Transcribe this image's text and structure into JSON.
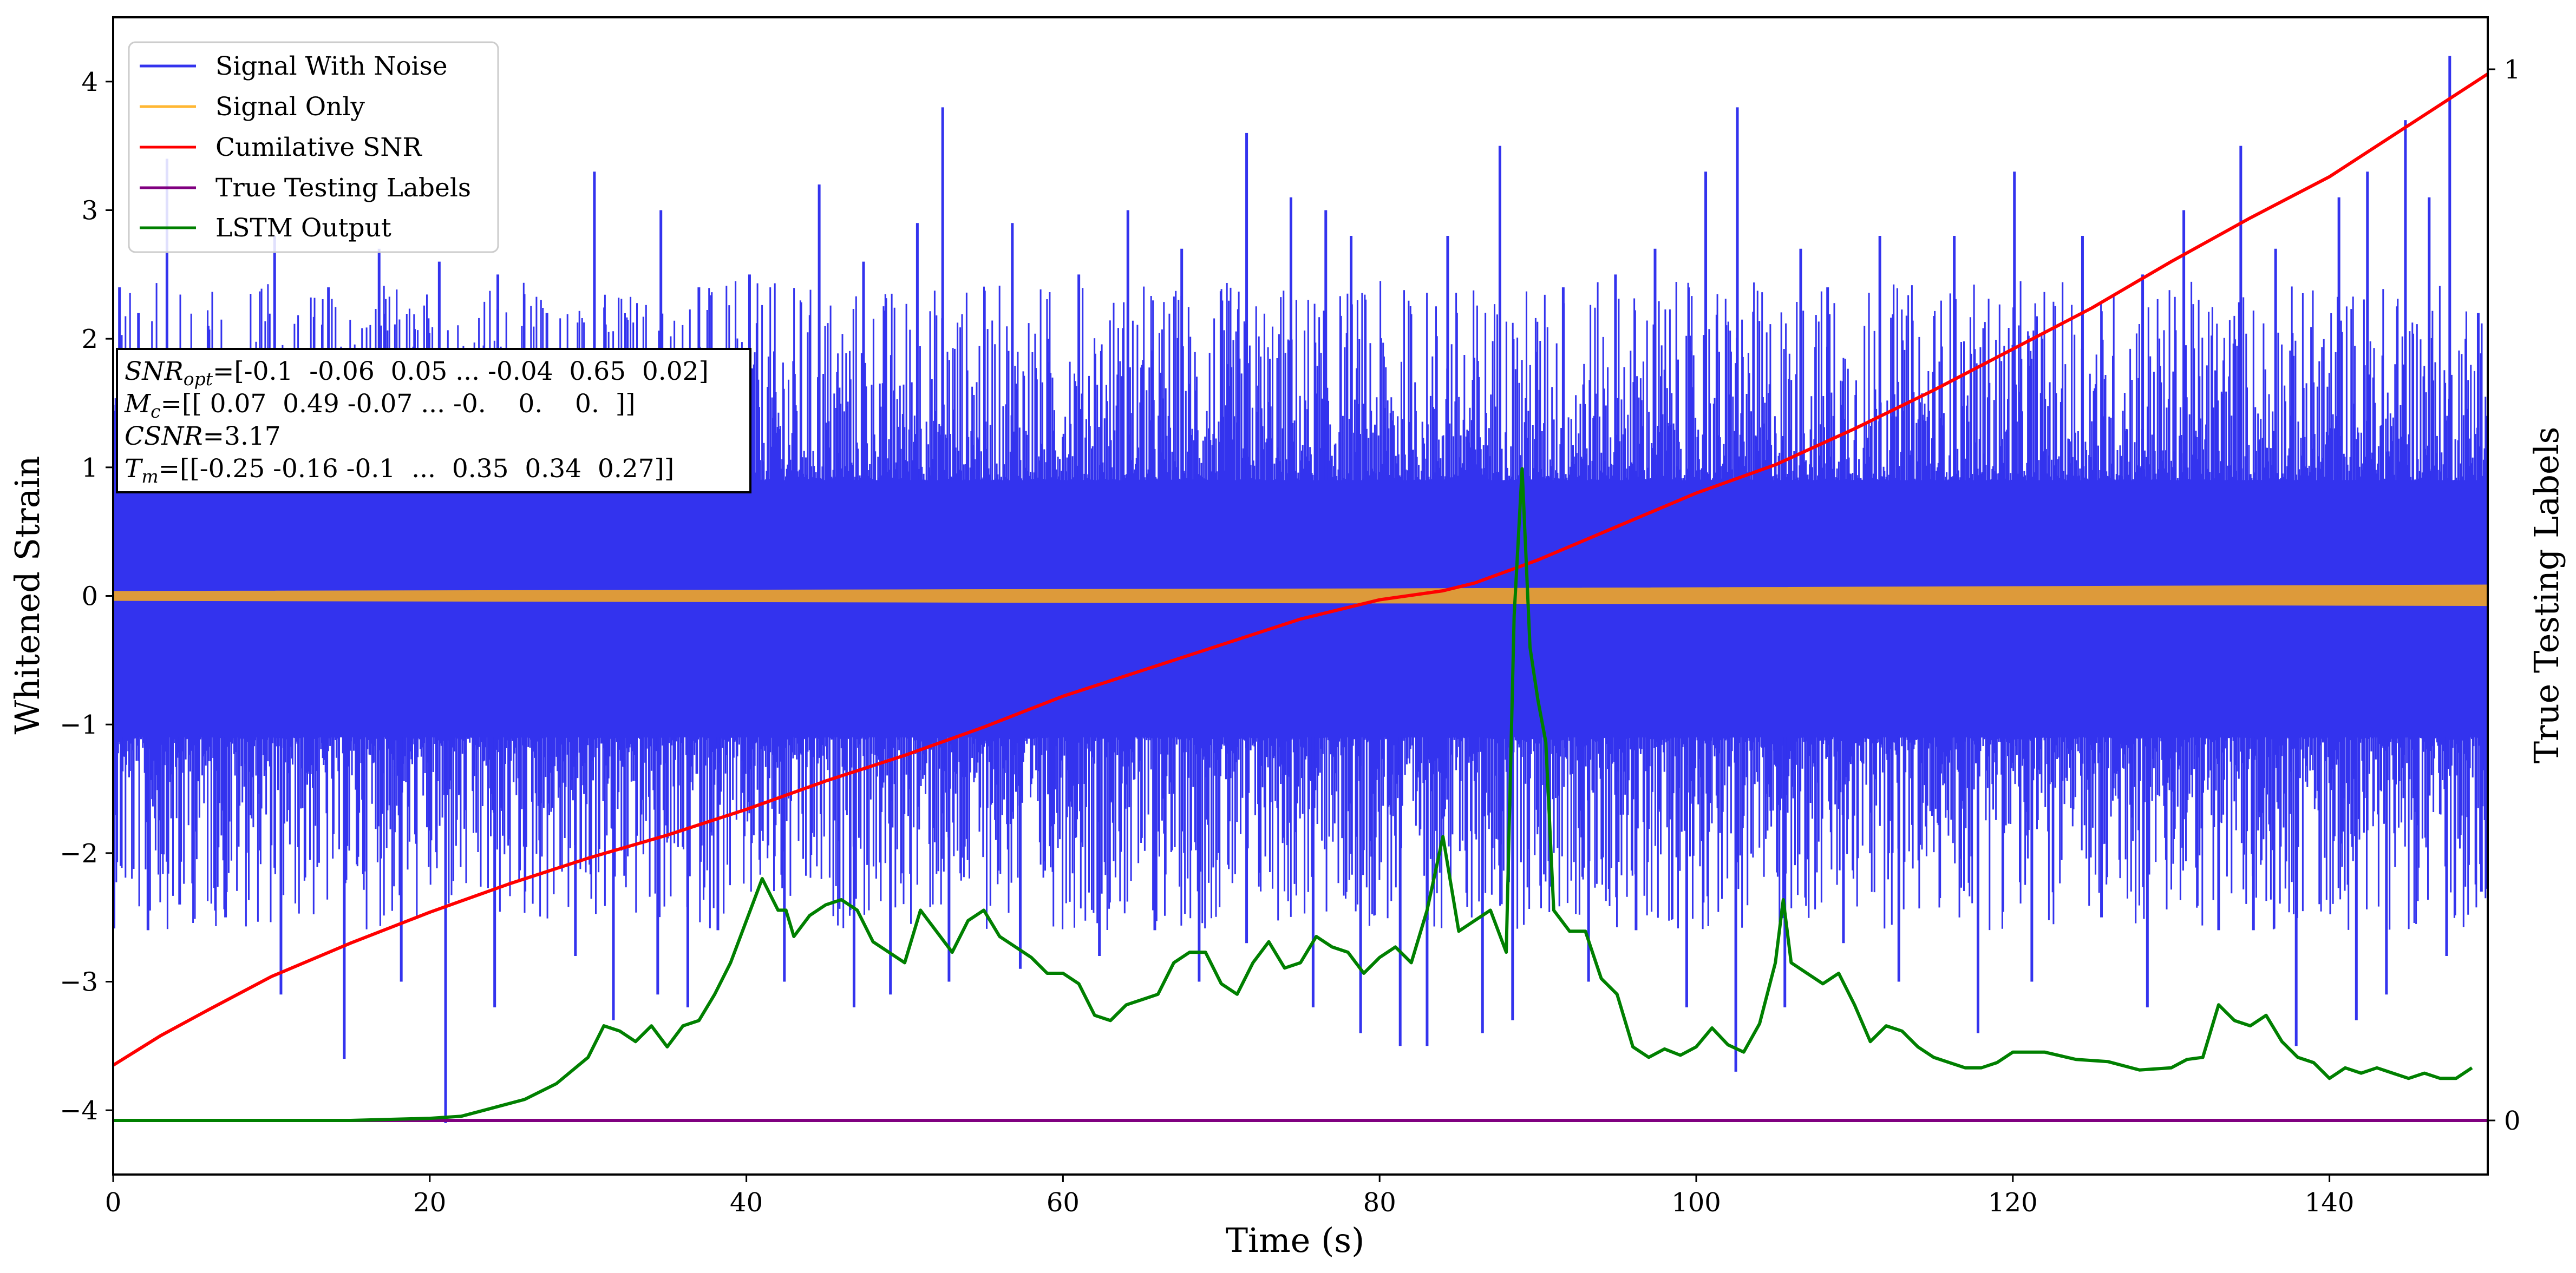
{
  "chart_data": {
    "type": "line",
    "xlabel": "Time (s)",
    "ylabel": "Whitened Strain",
    "y2label": "True Testing Labels",
    "xlim": [
      0,
      150
    ],
    "ylim": [
      -4.5,
      4.5
    ],
    "y2lim": [
      0,
      1
    ],
    "xticks": [
      0,
      20,
      40,
      60,
      80,
      100,
      120,
      140
    ],
    "yticks": [
      -4,
      -3,
      -2,
      -1,
      0,
      1,
      2,
      3,
      4
    ],
    "y2ticks": [
      0,
      1
    ],
    "grid": false,
    "legend_position": "top-left",
    "annotation": {
      "snr_sym": "SNR",
      "snr_sub": "opt",
      "snr_val": "=[-0.1  -0.06  0.05 ... -0.04  0.65  0.02]",
      "mc_sym": "M",
      "mc_sub": "c",
      "mc_val": "=[[ 0.07  0.49 -0.07 ... -0.    0.    0.  ]]",
      "csnr_sym": "CSNR",
      "csnr_val": "=3.17",
      "tm_sym": "T",
      "tm_sub": "m",
      "tm_val": "=[[-0.25 -0.16 -0.1  ...  0.35  0.34  0.27]]"
    },
    "series": [
      {
        "name": "Signal With Noise",
        "color": "#3333ee",
        "axis": "left",
        "style": "dense-noise",
        "band_upper": 0.9,
        "band_lower": -1.1,
        "peaks_upper": [
          [
            0.4,
            2.4
          ],
          [
            1.6,
            2.2
          ],
          [
            3.4,
            3.4
          ],
          [
            6.0,
            2.1
          ],
          [
            10.2,
            2.8
          ],
          [
            13.6,
            2.4
          ],
          [
            16.8,
            2.7
          ],
          [
            20.6,
            2.6
          ],
          [
            24.3,
            2.5
          ],
          [
            27.4,
            2.2
          ],
          [
            30.4,
            3.3
          ],
          [
            34.6,
            3.0
          ],
          [
            37.0,
            2.4
          ],
          [
            40.2,
            2.5
          ],
          [
            44.6,
            3.2
          ],
          [
            47.4,
            2.6
          ],
          [
            50.8,
            2.9
          ],
          [
            52.4,
            3.8
          ],
          [
            56.8,
            2.9
          ],
          [
            61.0,
            2.5
          ],
          [
            64.1,
            3.0
          ],
          [
            67.5,
            2.7
          ],
          [
            71.6,
            3.6
          ],
          [
            74.4,
            3.1
          ],
          [
            76.6,
            3.0
          ],
          [
            78.2,
            2.8
          ],
          [
            84.3,
            2.8
          ],
          [
            87.6,
            3.5
          ],
          [
            91.6,
            2.4
          ],
          [
            94.9,
            2.5
          ],
          [
            97.4,
            2.7
          ],
          [
            100.6,
            3.3
          ],
          [
            102.6,
            3.8
          ],
          [
            106.6,
            2.7
          ],
          [
            108.3,
            2.4
          ],
          [
            111.6,
            2.8
          ],
          [
            116.3,
            2.8
          ],
          [
            120.1,
            3.3
          ],
          [
            124.4,
            2.8
          ],
          [
            128.2,
            2.5
          ],
          [
            130.8,
            3.0
          ],
          [
            134.4,
            3.5
          ],
          [
            136.6,
            2.7
          ],
          [
            140.6,
            3.1
          ],
          [
            142.4,
            3.3
          ],
          [
            144.8,
            3.7
          ],
          [
            146.3,
            3.1
          ],
          [
            147.6,
            4.2
          ],
          [
            149.4,
            2.2
          ]
        ],
        "peaks_lower": [
          [
            0.5,
            -2.1
          ],
          [
            2.2,
            -2.6
          ],
          [
            4.2,
            -2.4
          ],
          [
            7.1,
            -2.5
          ],
          [
            10.6,
            -3.1
          ],
          [
            14.6,
            -3.6
          ],
          [
            18.2,
            -3.0
          ],
          [
            21.0,
            -4.1
          ],
          [
            24.1,
            -3.2
          ],
          [
            29.2,
            -2.8
          ],
          [
            31.6,
            -3.3
          ],
          [
            34.4,
            -3.1
          ],
          [
            36.3,
            -3.2
          ],
          [
            38.2,
            -2.6
          ],
          [
            42.4,
            -3.0
          ],
          [
            46.8,
            -3.2
          ],
          [
            49.1,
            -3.1
          ],
          [
            52.8,
            -3.0
          ],
          [
            57.3,
            -2.9
          ],
          [
            62.3,
            -2.8
          ],
          [
            65.8,
            -2.6
          ],
          [
            68.6,
            -3.0
          ],
          [
            71.6,
            -2.7
          ],
          [
            75.8,
            -3.2
          ],
          [
            78.8,
            -3.4
          ],
          [
            81.3,
            -3.5
          ],
          [
            83.0,
            -3.5
          ],
          [
            86.5,
            -3.4
          ],
          [
            88.4,
            -3.3
          ],
          [
            93.2,
            -3.0
          ],
          [
            96.2,
            -2.6
          ],
          [
            99.4,
            -3.2
          ],
          [
            102.5,
            -3.7
          ],
          [
            105.6,
            -3.2
          ],
          [
            109.3,
            -2.7
          ],
          [
            112.8,
            -3.0
          ],
          [
            117.8,
            -3.4
          ],
          [
            121.2,
            -3.0
          ],
          [
            125.6,
            -2.5
          ],
          [
            128.5,
            -3.2
          ],
          [
            133.0,
            -2.6
          ],
          [
            135.2,
            -2.6
          ],
          [
            137.9,
            -3.5
          ],
          [
            141.7,
            -3.3
          ],
          [
            143.6,
            -3.1
          ],
          [
            147.4,
            -2.8
          ],
          [
            149.6,
            -2.3
          ]
        ]
      },
      {
        "name": "Signal Only",
        "color": "#ffb733",
        "axis": "left",
        "style": "thin-band",
        "x": [
          0,
          80,
          150
        ],
        "upper": [
          0.03,
          0.05,
          0.08
        ],
        "lower": [
          -0.03,
          -0.05,
          -0.07
        ]
      },
      {
        "name": "Cumilative SNR",
        "color": "#ff0000",
        "axis": "left",
        "x": [
          0,
          3,
          6,
          10,
          15,
          20,
          25,
          30,
          35,
          40,
          45,
          50,
          55,
          60,
          65,
          70,
          75,
          80,
          84,
          86,
          90,
          95,
          100,
          105,
          110,
          115,
          120,
          125,
          130,
          135,
          140,
          145,
          150
        ],
        "y": [
          -3.65,
          -3.42,
          -3.22,
          -2.96,
          -2.7,
          -2.46,
          -2.24,
          -2.04,
          -1.86,
          -1.66,
          -1.44,
          -1.24,
          -1.02,
          -0.78,
          -0.58,
          -0.38,
          -0.18,
          -0.03,
          0.04,
          0.1,
          0.28,
          0.54,
          0.8,
          1.02,
          1.3,
          1.6,
          1.92,
          2.24,
          2.6,
          2.94,
          3.26,
          3.66,
          4.06
        ]
      },
      {
        "name": "True Testing Labels",
        "color": "#800080",
        "axis": "right",
        "x": [
          0,
          150
        ],
        "y": [
          0,
          0
        ]
      },
      {
        "name": "LSTM Output",
        "color": "#008000",
        "axis": "right",
        "x": [
          0,
          15,
          20,
          22,
          24,
          26,
          28,
          30,
          31,
          32,
          33,
          34,
          35,
          36,
          37,
          38,
          39,
          40,
          41,
          42,
          42.5,
          43,
          44,
          45,
          46,
          47,
          48,
          49,
          50,
          51,
          52,
          53,
          54,
          55,
          56,
          57,
          58,
          59,
          60,
          61,
          62,
          63,
          64,
          65,
          66,
          67,
          68,
          69,
          70,
          71,
          72,
          73,
          74,
          75,
          76,
          77,
          78,
          79,
          80,
          81,
          82,
          83,
          84,
          85,
          86,
          87,
          88,
          88.5,
          89,
          89.5,
          90,
          90.5,
          91,
          92,
          93,
          94,
          95,
          96,
          97,
          98,
          99,
          100,
          101,
          102,
          103,
          104,
          105,
          105.5,
          106,
          107,
          108,
          109,
          110,
          111,
          112,
          113,
          114,
          115,
          116,
          117,
          118,
          119,
          120,
          122,
          124,
          126,
          128,
          130,
          131,
          132,
          133,
          134,
          135,
          136,
          137,
          138,
          139,
          140,
          141,
          142,
          143,
          144,
          145,
          146,
          147,
          148,
          149
        ],
        "y": [
          0,
          0,
          0.002,
          0.004,
          0.012,
          0.02,
          0.035,
          0.06,
          0.09,
          0.085,
          0.075,
          0.09,
          0.07,
          0.09,
          0.095,
          0.12,
          0.15,
          0.19,
          0.23,
          0.2,
          0.2,
          0.175,
          0.195,
          0.205,
          0.21,
          0.2,
          0.17,
          0.16,
          0.15,
          0.2,
          0.18,
          0.16,
          0.19,
          0.2,
          0.175,
          0.165,
          0.155,
          0.14,
          0.14,
          0.13,
          0.1,
          0.095,
          0.11,
          0.115,
          0.12,
          0.15,
          0.16,
          0.16,
          0.13,
          0.12,
          0.15,
          0.17,
          0.145,
          0.15,
          0.175,
          0.165,
          0.16,
          0.14,
          0.155,
          0.165,
          0.15,
          0.2,
          0.27,
          0.18,
          0.19,
          0.2,
          0.16,
          0.48,
          0.62,
          0.45,
          0.4,
          0.36,
          0.2,
          0.18,
          0.18,
          0.135,
          0.12,
          0.07,
          0.06,
          0.068,
          0.062,
          0.07,
          0.088,
          0.072,
          0.065,
          0.092,
          0.15,
          0.21,
          0.15,
          0.14,
          0.13,
          0.14,
          0.11,
          0.075,
          0.09,
          0.085,
          0.07,
          0.06,
          0.055,
          0.05,
          0.05,
          0.055,
          0.065,
          0.065,
          0.058,
          0.056,
          0.048,
          0.05,
          0.058,
          0.06,
          0.11,
          0.095,
          0.09,
          0.1,
          0.075,
          0.06,
          0.055,
          0.04,
          0.05,
          0.045,
          0.05,
          0.045,
          0.04,
          0.045,
          0.04,
          0.04,
          0.05
        ]
      }
    ]
  }
}
